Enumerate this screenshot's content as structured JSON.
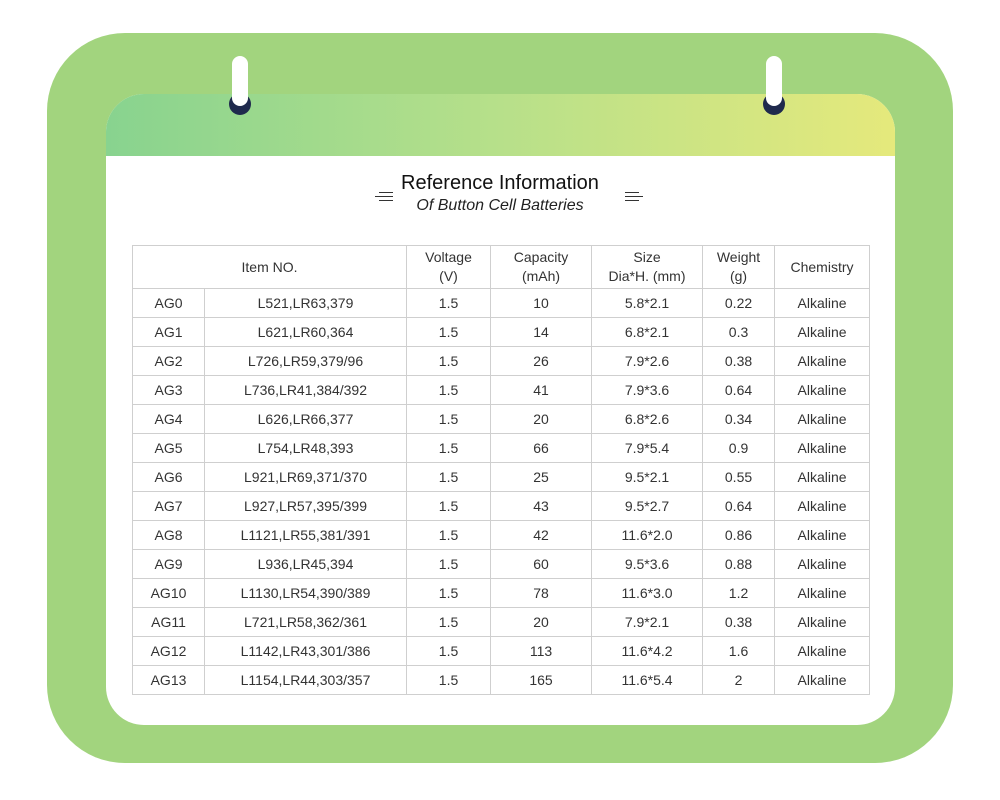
{
  "title": "Reference Information",
  "subtitle": "Of Button Cell Batteries",
  "colors": {
    "outer": "#a2d47e",
    "header_start": "#88d38f",
    "header_end": "#e5e97c",
    "ring": "#1f2a4d",
    "border": "#cfcfcf"
  },
  "table": {
    "headers": {
      "item": "Item NO.",
      "voltage_1": "Voltage",
      "voltage_2": "(V)",
      "capacity_1": "Capacity",
      "capacity_2": "(mAh)",
      "size_1": "Size",
      "size_2": "Dia*H. (mm)",
      "weight_1": "Weight",
      "weight_2": "(g)",
      "chemistry": "Chemistry"
    },
    "rows": [
      {
        "code": "AG0",
        "equiv": "L521,LR63,379",
        "voltage": "1.5",
        "capacity": "10",
        "size": "5.8*2.1",
        "weight": "0.22",
        "chemistry": "Alkaline"
      },
      {
        "code": "AG1",
        "equiv": "L621,LR60,364",
        "voltage": "1.5",
        "capacity": "14",
        "size": "6.8*2.1",
        "weight": "0.3",
        "chemistry": "Alkaline"
      },
      {
        "code": "AG2",
        "equiv": "L726,LR59,379/96",
        "voltage": "1.5",
        "capacity": "26",
        "size": "7.9*2.6",
        "weight": "0.38",
        "chemistry": "Alkaline"
      },
      {
        "code": "AG3",
        "equiv": "L736,LR41,384/392",
        "voltage": "1.5",
        "capacity": "41",
        "size": "7.9*3.6",
        "weight": "0.64",
        "chemistry": "Alkaline"
      },
      {
        "code": "AG4",
        "equiv": "L626,LR66,377",
        "voltage": "1.5",
        "capacity": "20",
        "size": "6.8*2.6",
        "weight": "0.34",
        "chemistry": "Alkaline"
      },
      {
        "code": "AG5",
        "equiv": "L754,LR48,393",
        "voltage": "1.5",
        "capacity": "66",
        "size": "7.9*5.4",
        "weight": "0.9",
        "chemistry": "Alkaline"
      },
      {
        "code": "AG6",
        "equiv": "L921,LR69,371/370",
        "voltage": "1.5",
        "capacity": "25",
        "size": "9.5*2.1",
        "weight": "0.55",
        "chemistry": "Alkaline"
      },
      {
        "code": "AG7",
        "equiv": "L927,LR57,395/399",
        "voltage": "1.5",
        "capacity": "43",
        "size": "9.5*2.7",
        "weight": "0.64",
        "chemistry": "Alkaline"
      },
      {
        "code": "AG8",
        "equiv": "L1121,LR55,381/391",
        "voltage": "1.5",
        "capacity": "42",
        "size": "11.6*2.0",
        "weight": "0.86",
        "chemistry": "Alkaline"
      },
      {
        "code": "AG9",
        "equiv": "L936,LR45,394",
        "voltage": "1.5",
        "capacity": "60",
        "size": "9.5*3.6",
        "weight": "0.88",
        "chemistry": "Alkaline"
      },
      {
        "code": "AG10",
        "equiv": "L1130,LR54,390/389",
        "voltage": "1.5",
        "capacity": "78",
        "size": "11.6*3.0",
        "weight": "1.2",
        "chemistry": "Alkaline"
      },
      {
        "code": "AG11",
        "equiv": "L721,LR58,362/361",
        "voltage": "1.5",
        "capacity": "20",
        "size": "7.9*2.1",
        "weight": "0.38",
        "chemistry": "Alkaline"
      },
      {
        "code": "AG12",
        "equiv": "L1142,LR43,301/386",
        "voltage": "1.5",
        "capacity": "113",
        "size": "11.6*4.2",
        "weight": "1.6",
        "chemistry": "Alkaline"
      },
      {
        "code": "AG13",
        "equiv": "L1154,LR44,303/357",
        "voltage": "1.5",
        "capacity": "165",
        "size": "11.6*5.4",
        "weight": "2",
        "chemistry": "Alkaline"
      }
    ]
  }
}
